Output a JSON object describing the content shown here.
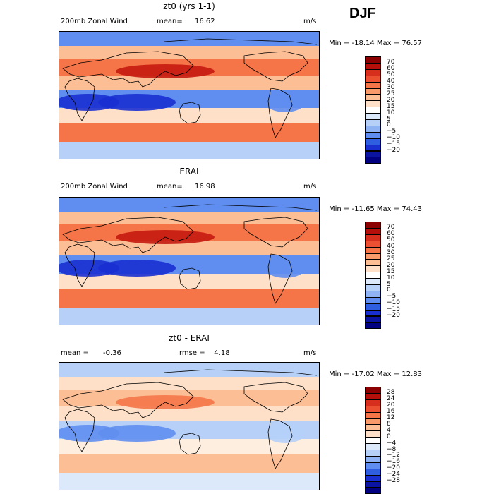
{
  "season": "DJF",
  "panels": [
    {
      "title": "zt0 (yrs 1-1)",
      "left_label": "200mb Zonal Wind",
      "stat_label": "mean=",
      "stat_value": "16.62",
      "right_label": "",
      "units": "m/s",
      "min_label": "Min = ",
      "min_value": "-18.14",
      "max_label": "Max = ",
      "max_value": "76.57",
      "colorbar_labels": [
        "70",
        "60",
        "50",
        "40",
        "30",
        "25",
        "20",
        "15",
        "10",
        "5",
        "0",
        "−5",
        "−10",
        "−15",
        "−20"
      ],
      "colorbar_colors": [
        "#8b0000",
        "#b40f0a",
        "#d62f1d",
        "#ec5032",
        "#f57548",
        "#f99a6b",
        "#fcbe95",
        "#fde0c7",
        "#ffffff",
        "#dbe9fb",
        "#b6d0f8",
        "#8fb3f3",
        "#5f8ef0",
        "#2f5fe0",
        "#1a2fd0",
        "#0a14a0",
        "#000080"
      ],
      "map_colors": {
        "strong_pos": "#c51b0f",
        "pos": "#f57548",
        "weak_pos": "#fcbe95",
        "neutral": "#fde0c7",
        "weak_neg": "#b6d0f8",
        "neg": "#5f8ef0",
        "strong_neg": "#1a2fd0"
      }
    },
    {
      "title": "ERAI",
      "left_label": "200mb Zonal Wind",
      "stat_label": "mean=",
      "stat_value": "16.98",
      "right_label": "",
      "units": "m/s",
      "min_label": "Min = ",
      "min_value": "-11.65",
      "max_label": "Max = ",
      "max_value": "74.43",
      "colorbar_labels": [
        "70",
        "60",
        "50",
        "40",
        "30",
        "25",
        "20",
        "15",
        "10",
        "5",
        "0",
        "−5",
        "−10",
        "−15",
        "−20"
      ],
      "colorbar_colors": [
        "#8b0000",
        "#b40f0a",
        "#d62f1d",
        "#ec5032",
        "#f57548",
        "#f99a6b",
        "#fcbe95",
        "#fde0c7",
        "#ffffff",
        "#dbe9fb",
        "#b6d0f8",
        "#8fb3f3",
        "#5f8ef0",
        "#2f5fe0",
        "#1a2fd0",
        "#0a14a0",
        "#000080"
      ],
      "map_colors": {
        "strong_pos": "#c51b0f",
        "pos": "#f57548",
        "weak_pos": "#fcbe95",
        "neutral": "#fde0c7",
        "weak_neg": "#b6d0f8",
        "neg": "#5f8ef0",
        "strong_neg": "#1a2fd0"
      }
    },
    {
      "title": "zt0 - ERAI",
      "left_label": "mean =",
      "stat_label": "-0.36",
      "stat_value": "",
      "right_label": "rmse =    4.18",
      "units": "m/s",
      "min_label": "Min = ",
      "min_value": "-17.02",
      "max_label": "Max = ",
      "max_value": "12.83",
      "colorbar_labels": [
        "28",
        "24",
        "20",
        "16",
        "12",
        "8",
        "4",
        "0",
        "−4",
        "−8",
        "−12",
        "−16",
        "−20",
        "−24",
        "−28"
      ],
      "colorbar_colors": [
        "#8b0000",
        "#b40f0a",
        "#d62f1d",
        "#ec5032",
        "#f57548",
        "#f99a6b",
        "#fcbe95",
        "#fde0c7",
        "#ffffff",
        "#dbe9fb",
        "#b6d0f8",
        "#8fb3f3",
        "#5f8ef0",
        "#2f5fe0",
        "#1a2fd0",
        "#0a14a0",
        "#000080"
      ],
      "map_colors": {
        "strong_pos": "#f57548",
        "pos": "#fcbe95",
        "weak_pos": "#fde0c7",
        "neutral": "#fdeee0",
        "weak_neg": "#dbe9fb",
        "neg": "#b6d0f8",
        "strong_neg": "#5f8ef0"
      }
    }
  ]
}
